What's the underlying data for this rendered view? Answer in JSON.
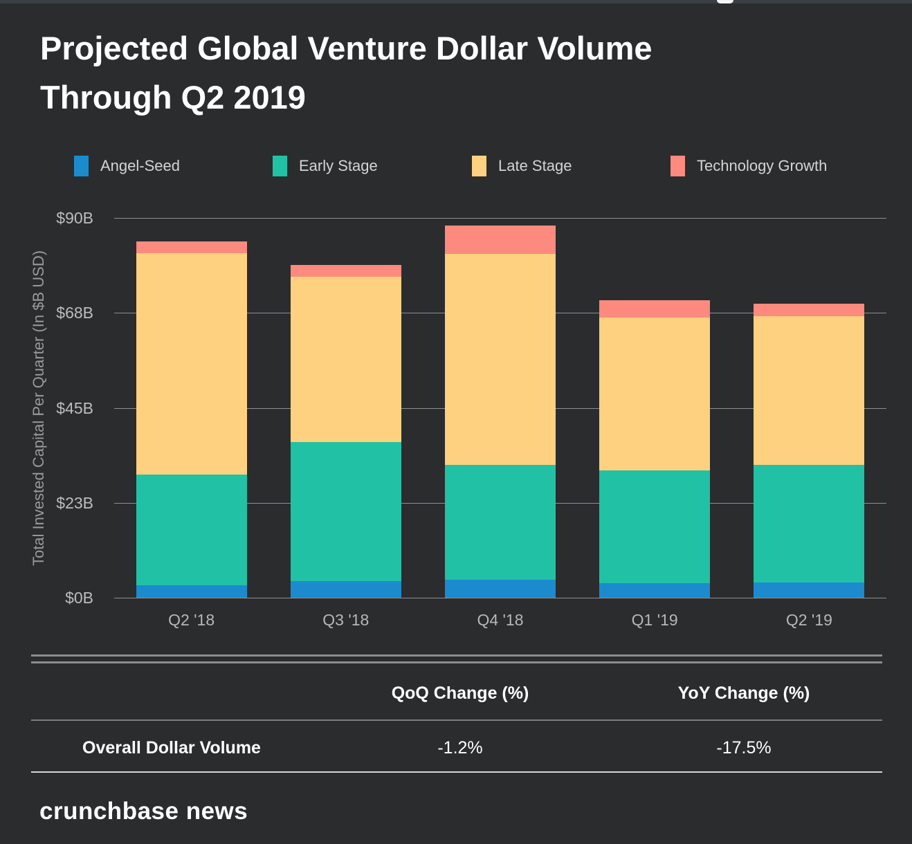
{
  "header": {
    "title_line1": "Projected Global Venture Dollar Volume",
    "title_line2": "Through Q2 2019"
  },
  "chart_data": {
    "type": "bar",
    "subtype": "stacked",
    "title": "Projected Global Venture Dollar Volume Through Q2 2019",
    "categories": [
      "Q2 '18",
      "Q3 '18",
      "Q4 '18",
      "Q1 '19",
      "Q2 '19"
    ],
    "series": [
      {
        "name": "Angel-Seed",
        "color": "#1b8bce",
        "values": [
          3.0,
          4.0,
          4.2,
          3.5,
          3.6
        ]
      },
      {
        "name": "Early Stage",
        "color": "#21c1a5",
        "values": [
          26.1,
          32.9,
          27.3,
          26.6,
          27.8
        ]
      },
      {
        "name": "Late Stage",
        "color": "#fdd17f",
        "values": [
          52.6,
          39.1,
          50.0,
          36.3,
          35.4
        ]
      },
      {
        "name": "Technology Growth",
        "color": "#fc8a7e",
        "values": [
          2.8,
          2.8,
          6.7,
          4.1,
          2.8
        ]
      }
    ],
    "totals": [
      84.5,
      78.8,
      88.2,
      70.5,
      69.6
    ],
    "xlabel": "",
    "ylabel": "Total Invested Capital Per Quarter (In $B USD)",
    "ylim": [
      0,
      90
    ],
    "yticks": [
      {
        "label": "$90B",
        "value": 90
      },
      {
        "label": "$68B",
        "value": 67.5
      },
      {
        "label": "$45B",
        "value": 45
      },
      {
        "label": "$23B",
        "value": 22.5
      },
      {
        "label": "$0B",
        "value": 0
      }
    ],
    "grid": true,
    "legend_position": "top"
  },
  "table": {
    "col_headers": [
      "QoQ Change (%)",
      "YoY Change (%)"
    ],
    "rows": [
      {
        "label": "Overall Dollar Volume",
        "qoq": "-1.2%",
        "yoy": "-17.5%"
      }
    ]
  },
  "footer": {
    "brand": "crunchbase news"
  },
  "colors": {
    "background": "#2b2c2e",
    "gridline": "#8f8f8f",
    "axis_text": "#b7b7b7",
    "title_text": "#ffffff"
  }
}
